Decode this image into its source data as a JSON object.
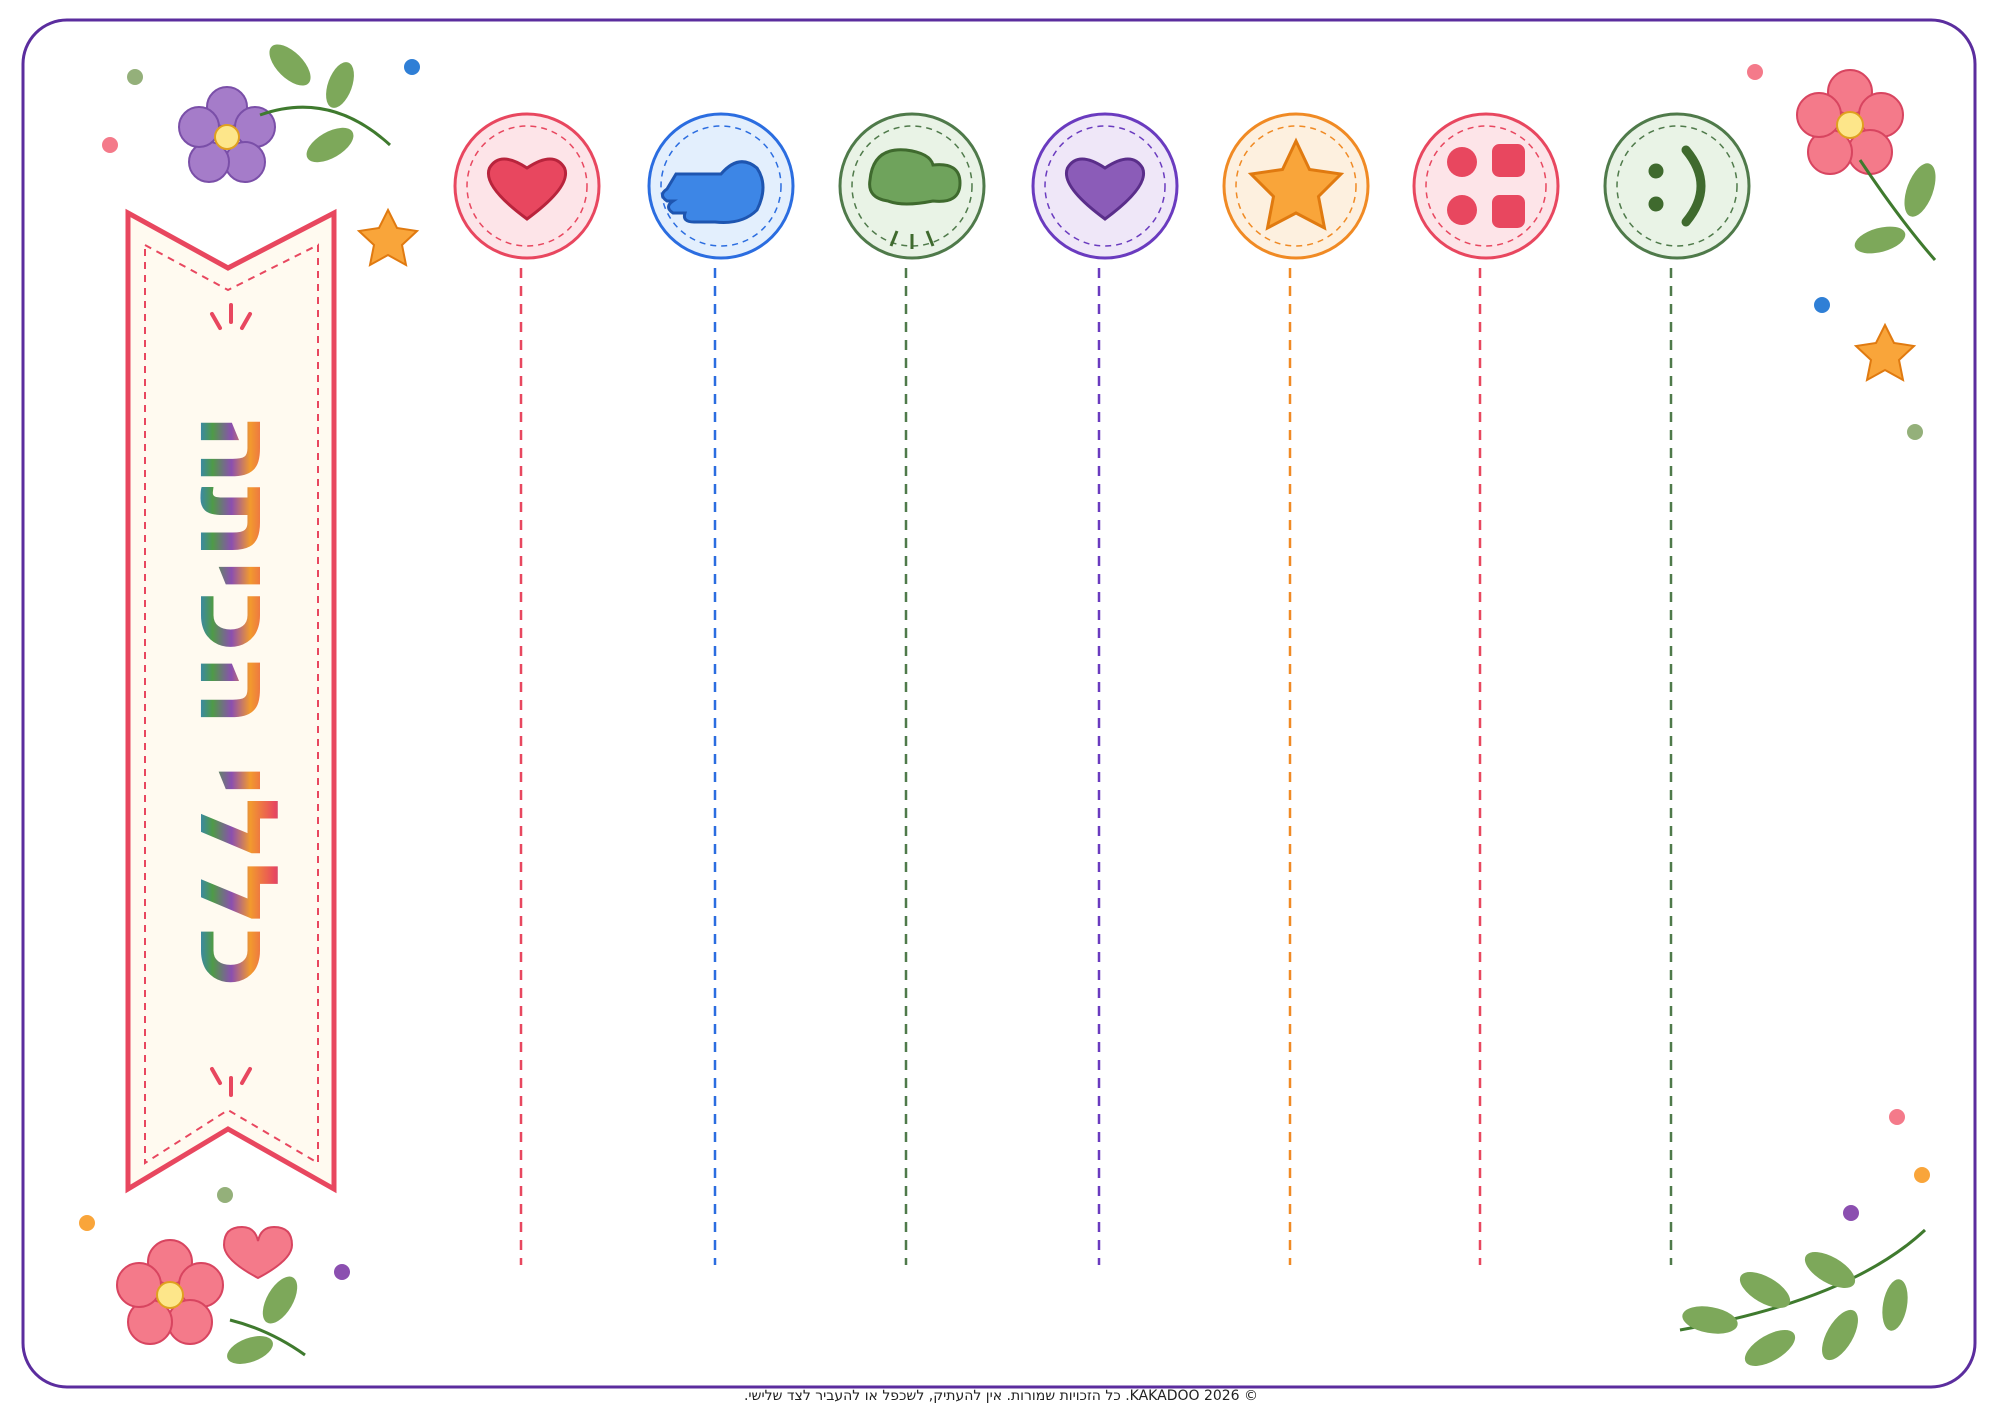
{
  "header": {
    "title": "כללי הכיתה"
  },
  "footer": {
    "text": "© KAKADOO 2026. כל הזכויות שמורות. אין להעתיק, לשכפל או להעביר לצד שלישי."
  }
}
